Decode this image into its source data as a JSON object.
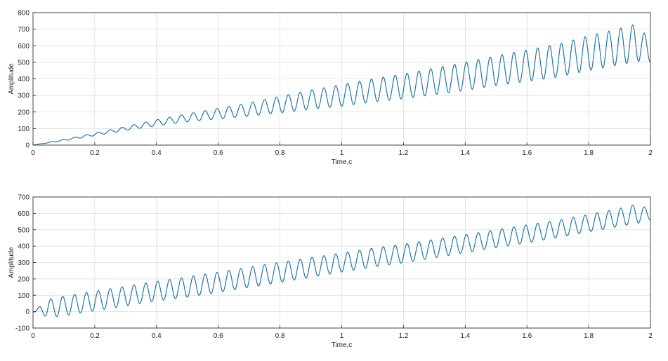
{
  "chart_data": [
    {
      "type": "line",
      "title": "",
      "xlabel": "Time,c",
      "ylabel": "Amplitude",
      "xlim": [
        0,
        2
      ],
      "ylim": [
        0,
        800
      ],
      "xticks": [
        0,
        0.2,
        0.4,
        0.6,
        0.8,
        1,
        1.2,
        1.4,
        1.6,
        1.8,
        2
      ],
      "yticks": [
        0,
        100,
        200,
        300,
        400,
        500,
        600,
        700,
        800
      ],
      "grid": true,
      "color": "#1f77a8",
      "series": [
        {
          "description": "ramp with growing oscillation; oscillation period ≈ 0.0385 s (52 cycles over 2 s)",
          "x": [
            0,
            0.1,
            0.2,
            0.3,
            0.4,
            0.5,
            0.6,
            0.7,
            0.8,
            0.9,
            1.0,
            1.1,
            1.2,
            1.3,
            1.4,
            1.5,
            1.6,
            1.7,
            1.8,
            1.9,
            1.96,
            2.0
          ],
          "center": [
            0,
            30,
            65,
            100,
            135,
            165,
            190,
            215,
            245,
            275,
            300,
            330,
            355,
            385,
            415,
            450,
            480,
            510,
            555,
            595,
            620,
            560
          ],
          "amplitude": [
            0,
            4,
            8,
            12,
            18,
            24,
            32,
            40,
            50,
            58,
            65,
            70,
            75,
            80,
            85,
            90,
            95,
            100,
            105,
            110,
            115,
            60
          ]
        }
      ]
    },
    {
      "type": "line",
      "title": "",
      "xlabel": "Time,c",
      "ylabel": "Amplitude",
      "xlim": [
        0,
        2
      ],
      "ylim": [
        -100,
        700
      ],
      "xticks": [
        0,
        0.2,
        0.4,
        0.6,
        0.8,
        1,
        1.2,
        1.4,
        1.6,
        1.8,
        2
      ],
      "yticks": [
        -100,
        0,
        100,
        200,
        300,
        400,
        500,
        600,
        700
      ],
      "grid": true,
      "color": "#1f77a8",
      "series": [
        {
          "description": "ramp with near-constant oscillation; oscillation period ≈ 0.0385 s (52 cycles over 2 s)",
          "x": [
            0,
            0.05,
            0.1,
            0.2,
            0.3,
            0.4,
            0.5,
            0.6,
            0.7,
            0.8,
            0.9,
            1.0,
            1.1,
            1.2,
            1.3,
            1.4,
            1.5,
            1.6,
            1.7,
            1.8,
            1.9,
            1.96,
            2.0
          ],
          "center": [
            0,
            20,
            35,
            65,
            95,
            125,
            150,
            180,
            210,
            240,
            270,
            300,
            330,
            355,
            385,
            415,
            445,
            475,
            505,
            540,
            575,
            600,
            590
          ],
          "amplitude": [
            0,
            55,
            60,
            60,
            60,
            60,
            62,
            62,
            62,
            62,
            60,
            58,
            58,
            57,
            57,
            55,
            55,
            55,
            53,
            53,
            55,
            60,
            30
          ]
        }
      ]
    }
  ]
}
